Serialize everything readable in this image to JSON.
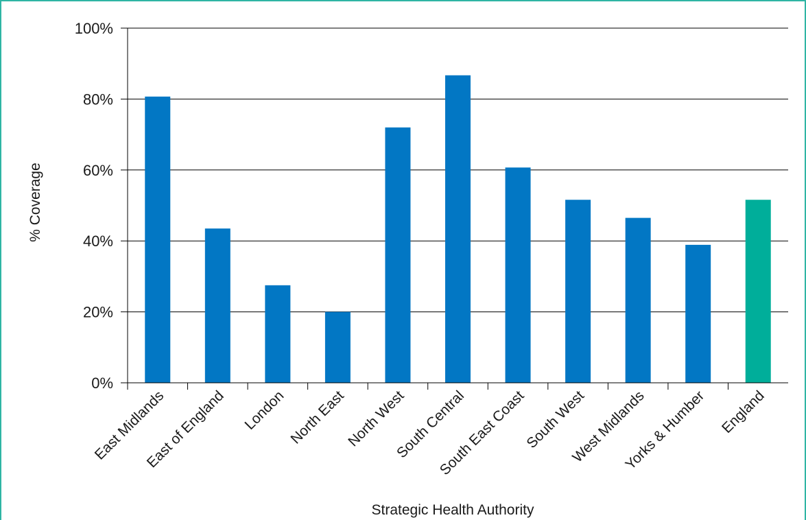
{
  "colors": {
    "frame": "#2fb5a4",
    "bar_default": "#0277c4",
    "bar_highlight": "#00ae9a",
    "grid": "#000000",
    "axis": "#000000",
    "text": "#1a1a1a"
  },
  "chart_data": {
    "type": "bar",
    "title": "",
    "xlabel": "Strategic Health Authority",
    "ylabel": "% Coverage",
    "ylim": [
      0,
      100
    ],
    "yticks": [
      "0%",
      "20%",
      "40%",
      "60%",
      "80%",
      "100%"
    ],
    "ytick_values": [
      0,
      20,
      40,
      60,
      80,
      100
    ],
    "grid": true,
    "legend": "none",
    "categories": [
      "East Midlands",
      "East of England",
      "London",
      "North East",
      "North West",
      "South Central",
      "South East Coast",
      "South West",
      "West Midlands",
      "Yorks & Humber",
      "England"
    ],
    "values": [
      80.7,
      43.5,
      27.5,
      20.0,
      72.0,
      86.7,
      60.7,
      51.6,
      46.5,
      38.9,
      51.6
    ],
    "highlight_category": "England"
  }
}
